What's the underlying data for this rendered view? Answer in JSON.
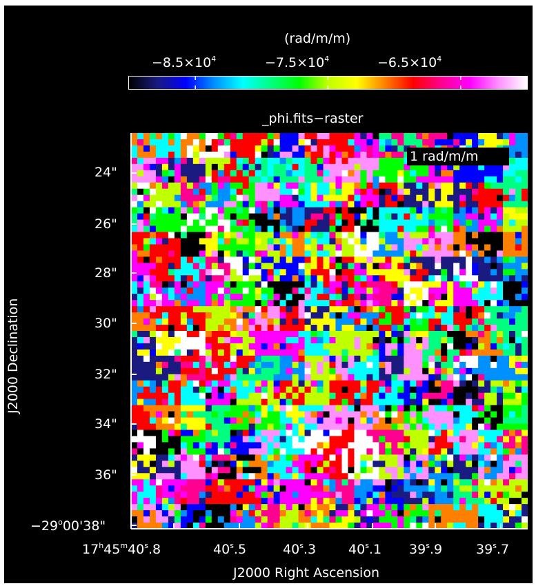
{
  "chart_data": {
    "type": "heatmap",
    "title": "_phi.fits−raster",
    "colorbar": {
      "unit_label": "(rad/m/m)",
      "tick_labels": [
        {
          "mantissa": "−8.5×10",
          "exp": "4",
          "value": -85000
        },
        {
          "mantissa": "−7.5×10",
          "exp": "4",
          "value": -75000
        },
        {
          "mantissa": "−6.5×10",
          "exp": "4",
          "value": -65000
        }
      ],
      "range": [
        -90000,
        -60000
      ],
      "colormap": [
        "#000000",
        "#1a1a80",
        "#0000ff",
        "#0090ff",
        "#00ffff",
        "#00ff80",
        "#00ff00",
        "#c0ff00",
        "#ffff00",
        "#ff8000",
        "#ff0000",
        "#ff0090",
        "#ff00ff",
        "#ff90ff",
        "#ffffff"
      ]
    },
    "beam_label": "1 rad/m/m",
    "xlabel": "J2000 Right Ascension",
    "ylabel": "J2000 Declination",
    "x_ticks": [
      {
        "base": "17",
        "h": "h",
        "m_val": "45",
        "m": "m",
        "s_val": "40",
        "s": "s",
        "frac": ".8"
      },
      {
        "s_val": "40",
        "s": "s",
        "frac": ".5"
      },
      {
        "s_val": "40",
        "s": "s",
        "frac": ".3"
      },
      {
        "s_val": "40",
        "s": "s",
        "frac": ".1"
      },
      {
        "s_val": "39",
        "s": "s",
        "frac": ".9"
      },
      {
        "s_val": "39",
        "s": "s",
        "frac": ".7"
      }
    ],
    "y_ticks": [
      "24\"",
      "26\"",
      "28\"",
      "30\"",
      "32\"",
      "34\"",
      "36\""
    ],
    "y_origin_label": {
      "deg": "−29",
      "deg_sym": "o",
      "rest": "00'38\""
    },
    "grid": false,
    "raster": {
      "cols": 64,
      "rows": 64
    }
  }
}
